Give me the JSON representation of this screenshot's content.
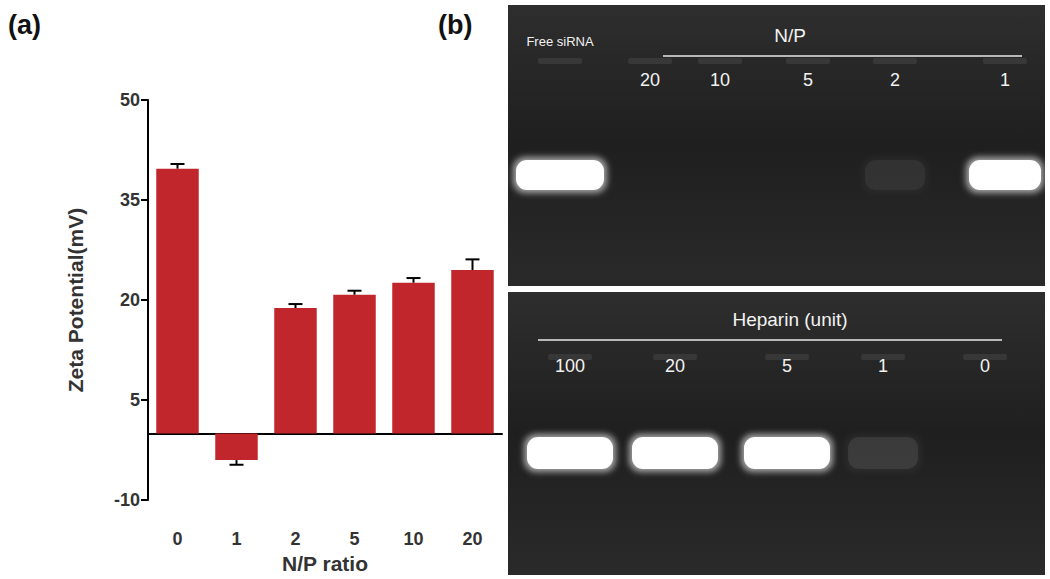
{
  "panel_labels": [
    "(a)",
    "(b)"
  ],
  "chart_data": {
    "type": "bar",
    "categories": [
      "0",
      "1",
      "2",
      "5",
      "10",
      "20"
    ],
    "values": [
      39.7,
      -4,
      18.8,
      20.8,
      22.6,
      24.5
    ],
    "errors": [
      0.7,
      0.7,
      0.6,
      0.6,
      0.7,
      1.6
    ],
    "color": "#c0262b",
    "xlabel": "N/P ratio",
    "ylabel": "Zeta Potential(mV)",
    "ylim": [
      -10,
      50
    ],
    "yticks": [
      -10,
      5,
      20,
      35,
      50
    ],
    "grid": false
  },
  "gels": [
    {
      "title": "N/P",
      "lanes": [
        "Free siRNA",
        "20",
        "10",
        "5",
        "2",
        "1"
      ],
      "band_intensity": [
        1,
        0,
        0,
        0,
        0.05,
        1
      ]
    },
    {
      "title": "Heparin (unit)",
      "lanes": [
        "100",
        "20",
        "5",
        "1",
        "0"
      ],
      "band_intensity": [
        1,
        1,
        1,
        0.08,
        0
      ]
    }
  ]
}
